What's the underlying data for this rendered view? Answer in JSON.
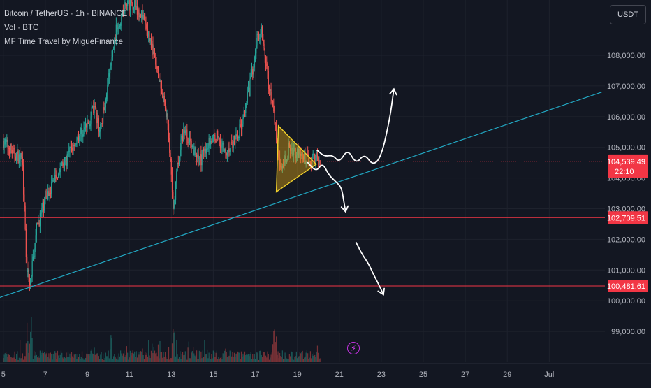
{
  "legend": {
    "symbol": "Bitcoin / TetherUS · 1h · BINANCE",
    "volume": "Vol · BTC",
    "indicator": "MF Time Travel by MigueFinance"
  },
  "currency_button": "USDT",
  "colors": {
    "background": "#131722",
    "grid": "#1e222d",
    "up": "#26a69a",
    "down": "#ef5350",
    "trendline": "#22a9c4",
    "level": "#f23645",
    "triangle_fill": "#d4a017",
    "triangle_stroke": "#f2d12b",
    "drawing": "#ffffff"
  },
  "chart_data": {
    "type": "candlestick",
    "symbol": "BTCUSDT",
    "interval": "1h",
    "x_ticks": [
      "5",
      "7",
      "9",
      "11",
      "13",
      "15",
      "17",
      "19",
      "21",
      "23",
      "25",
      "27",
      "29",
      "Jul"
    ],
    "x_tick_days": [
      5,
      7,
      9,
      11,
      13,
      15,
      17,
      19,
      21,
      23,
      25,
      27,
      29,
      31
    ],
    "y_ticks": [
      "99,000.00",
      "100,000.00",
      "101,000.00",
      "102,000.00",
      "103,000.00",
      "104,000.00",
      "105,000.00",
      "106,000.00",
      "107,000.00",
      "108,000.00"
    ],
    "y_tick_values": [
      99000,
      100000,
      101000,
      102000,
      103000,
      104000,
      105000,
      106000,
      107000,
      108000
    ],
    "ylim": [
      98000,
      109800
    ],
    "price_path": [
      [
        5.0,
        105200
      ],
      [
        5.5,
        104800
      ],
      [
        5.9,
        104600
      ],
      [
        6.1,
        101200
      ],
      [
        6.25,
        100400
      ],
      [
        6.6,
        102400
      ],
      [
        7.0,
        103300
      ],
      [
        7.5,
        104100
      ],
      [
        8.0,
        104600
      ],
      [
        8.5,
        105300
      ],
      [
        9.0,
        105700
      ],
      [
        9.3,
        106300
      ],
      [
        9.6,
        105500
      ],
      [
        10.0,
        107200
      ],
      [
        10.4,
        108900
      ],
      [
        10.8,
        109600
      ],
      [
        11.2,
        109700
      ],
      [
        11.6,
        109300
      ],
      [
        12.0,
        108500
      ],
      [
        12.4,
        107200
      ],
      [
        12.8,
        106000
      ],
      [
        13.0,
        104000
      ],
      [
        13.1,
        102800
      ],
      [
        13.3,
        104500
      ],
      [
        13.6,
        105600
      ],
      [
        14.0,
        105000
      ],
      [
        14.4,
        104600
      ],
      [
        14.8,
        105200
      ],
      [
        15.2,
        105400
      ],
      [
        15.6,
        104800
      ],
      [
        16.0,
        105200
      ],
      [
        16.4,
        105800
      ],
      [
        16.8,
        107200
      ],
      [
        17.1,
        108600
      ],
      [
        17.3,
        108900
      ],
      [
        17.6,
        107200
      ],
      [
        17.9,
        106000
      ],
      [
        18.1,
        104800
      ],
      [
        18.3,
        104200
      ],
      [
        18.6,
        105000
      ],
      [
        19.0,
        104800
      ],
      [
        19.4,
        104600
      ],
      [
        19.8,
        104700
      ],
      [
        20.1,
        104600
      ]
    ],
    "volume_note": "volume histogram at bottom",
    "last_price": "104,539.49",
    "countdown": "22:10",
    "levels": [
      {
        "value": 102709.51,
        "label": "102,709.51"
      },
      {
        "value": 100481.61,
        "label": "100,481.61"
      }
    ],
    "trendline": {
      "from": [
        4.8,
        100100
      ],
      "to": [
        33.5,
        106800
      ]
    },
    "triangle": {
      "points": [
        [
          18.1,
          105700
        ],
        [
          19.9,
          104450
        ],
        [
          18.0,
          103550
        ]
      ]
    },
    "scenarios": [
      {
        "name": "bullish",
        "points": [
          [
            19.95,
            104900
          ],
          [
            20.3,
            104700
          ],
          [
            20.7,
            104750
          ],
          [
            21.0,
            104500
          ],
          [
            21.4,
            104950
          ],
          [
            21.8,
            104450
          ],
          [
            22.2,
            104800
          ],
          [
            22.6,
            104400
          ],
          [
            23.0,
            104700
          ],
          [
            23.4,
            105900
          ],
          [
            23.6,
            106900
          ]
        ]
      },
      {
        "name": "bearish_retest",
        "points": [
          [
            19.5,
            104500
          ],
          [
            19.9,
            104200
          ],
          [
            20.2,
            104500
          ],
          [
            20.5,
            104100
          ],
          [
            20.8,
            103900
          ],
          [
            21.1,
            103700
          ],
          [
            21.2,
            103300
          ],
          [
            21.3,
            102900
          ]
        ]
      },
      {
        "name": "bearish_target",
        "points": [
          [
            21.8,
            101900
          ],
          [
            22.1,
            101500
          ],
          [
            22.4,
            101200
          ],
          [
            22.6,
            100900
          ],
          [
            22.9,
            100500
          ],
          [
            23.1,
            100200
          ]
        ]
      }
    ]
  }
}
